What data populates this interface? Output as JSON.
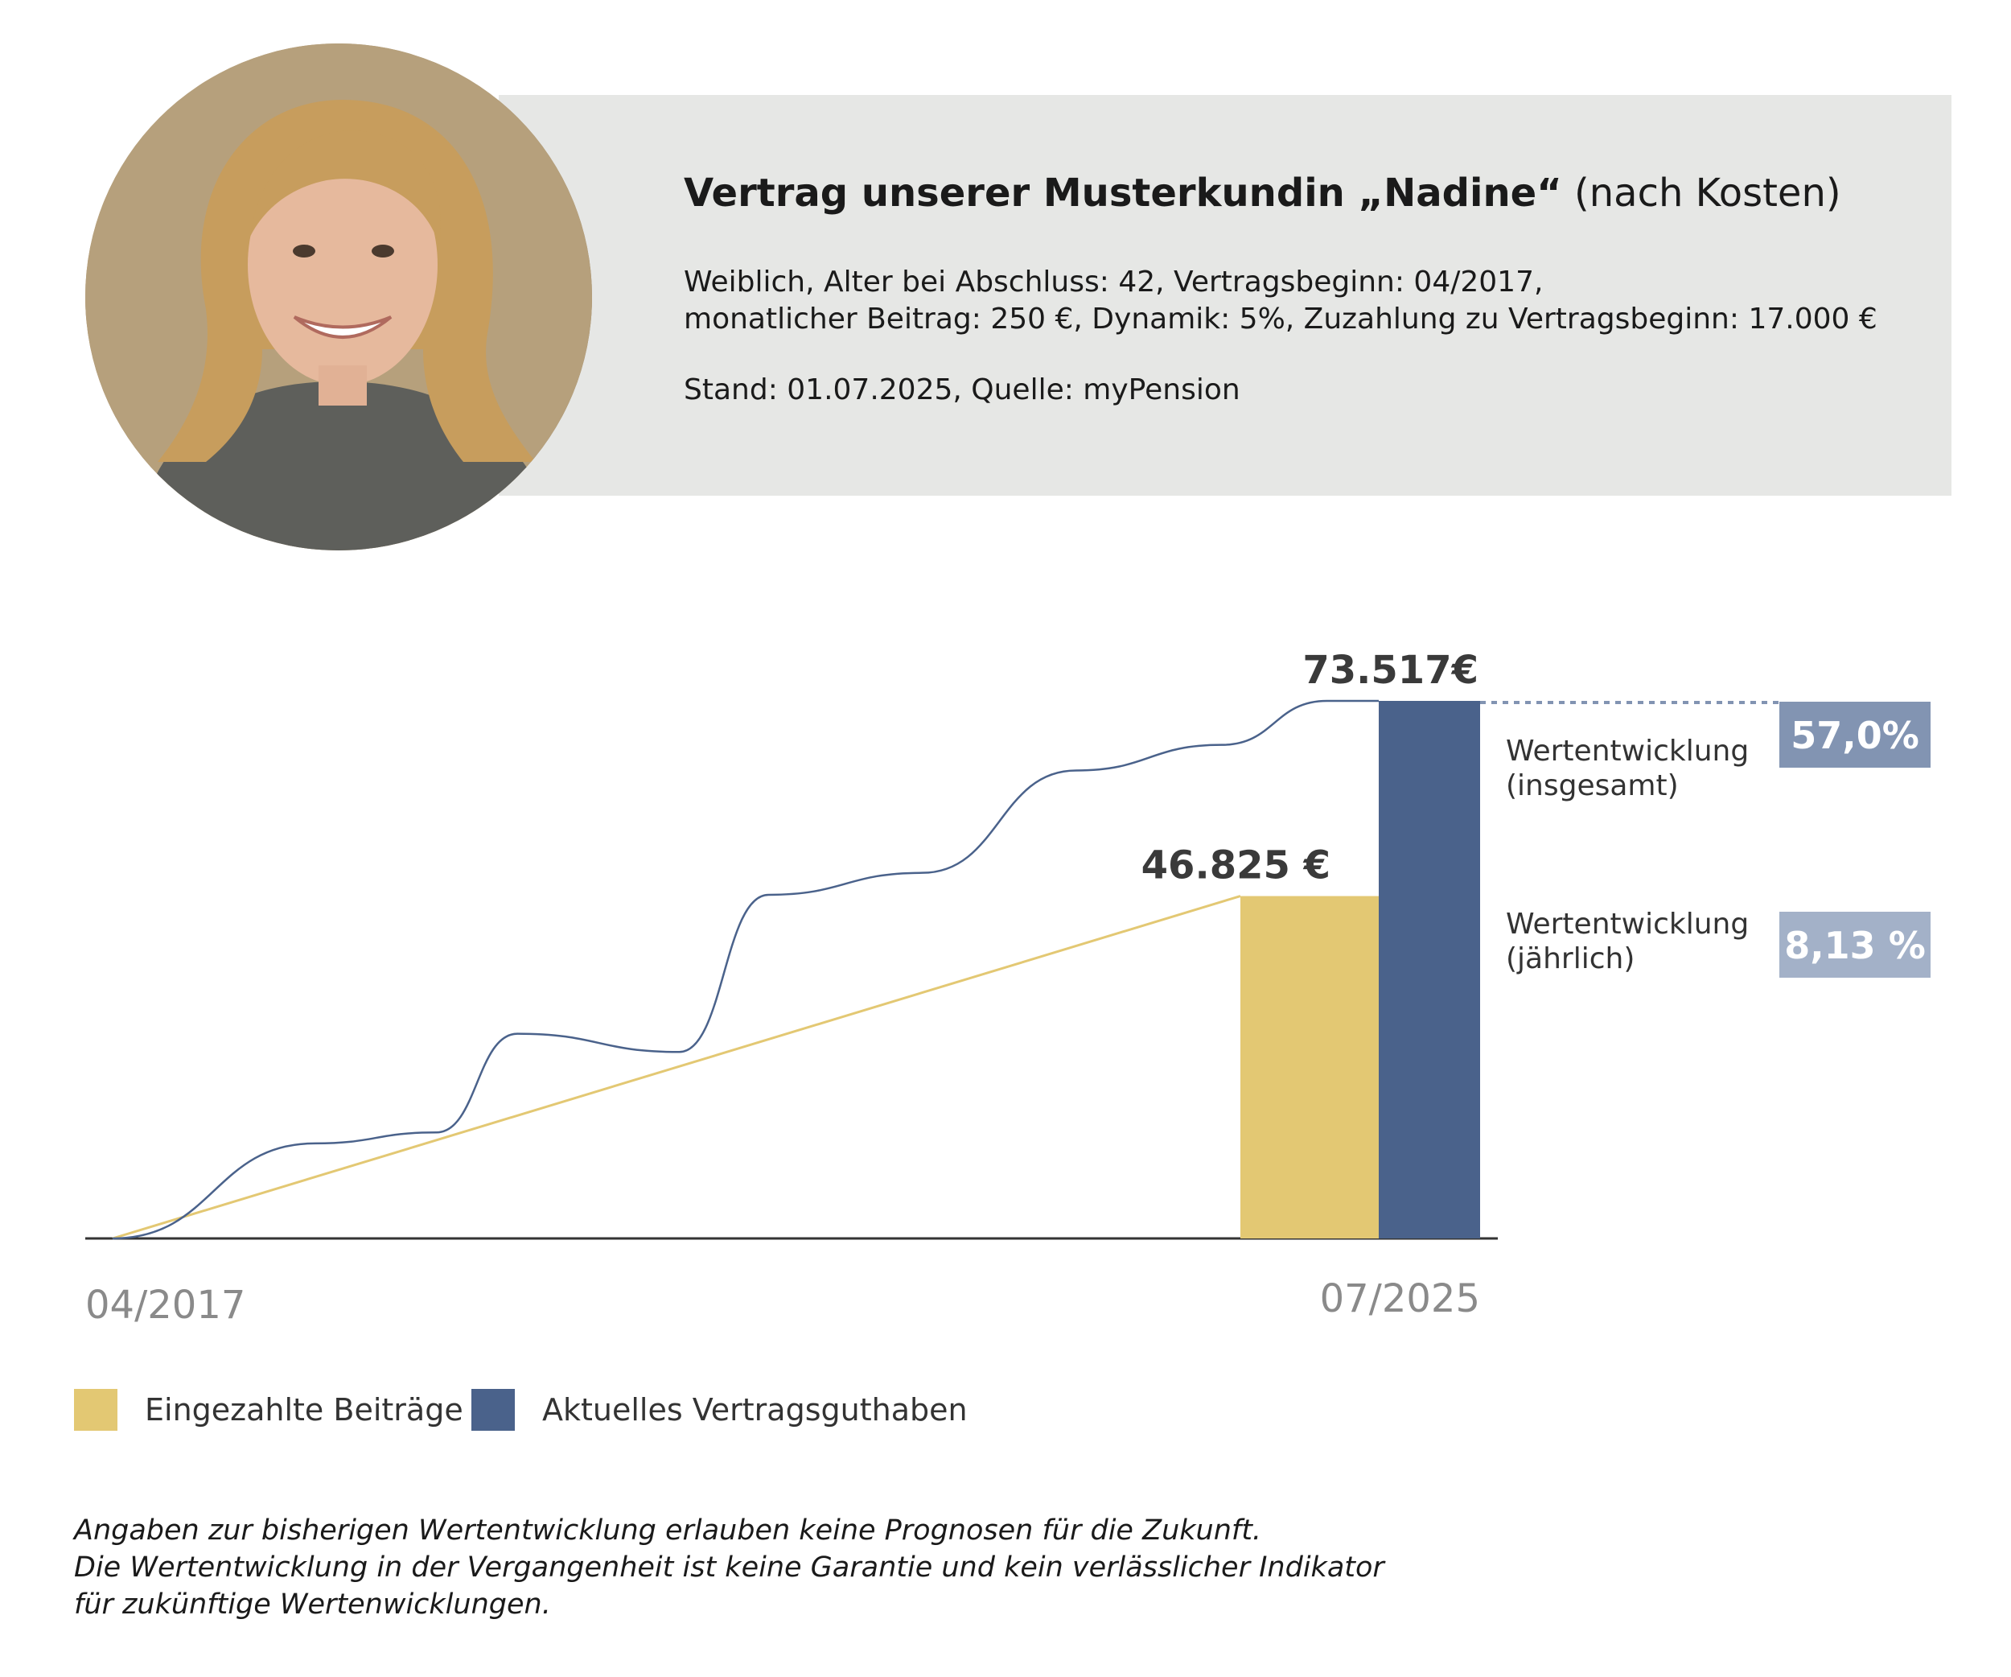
{
  "header": {
    "title_bold": "Vertrag unserer Musterkundin „Nadine“",
    "title_rest": "(nach Kosten)",
    "line1": "Weiblich, Alter bei Abschluss: 42, Vertragsbeginn: 04/2017,",
    "line2": "monatlicher Beitrag: 250 €, Dynamik: 5%, Zuzahlung zu Vertragsbeginn: 17.000 €",
    "line3": "Stand: 01.07.2025, Quelle: myPension"
  },
  "chart_data": {
    "type": "line",
    "x_start_label": "04/2017",
    "x_end_label": "07/2025",
    "series": [
      {
        "name": "Eingezahlte Beiträge",
        "color": "#e3c873",
        "x": [
          2017.25,
          2025.5
        ],
        "y": [
          0,
          46825
        ]
      },
      {
        "name": "Aktuelles Vertragsguthaben",
        "color": "#4a628b",
        "x": [
          2017.25,
          2018.5,
          2019.25,
          2019.75,
          2020.75,
          2021.3,
          2022.25,
          2023.2,
          2024.1,
          2024.75,
          2025.0
        ],
        "y": [
          0,
          13000,
          14500,
          28000,
          25500,
          47000,
          50000,
          64000,
          67500,
          73517,
          73517
        ]
      }
    ],
    "bars": [
      {
        "label": "46.825 €",
        "value": 46825,
        "color": "#e3c873"
      },
      {
        "label": "73.517€",
        "value": 73517,
        "color": "#4a628b"
      }
    ],
    "ylim": [
      0,
      73517
    ],
    "legend": [
      {
        "label": "Eingezahlte Beiträge",
        "color": "#e3c873"
      },
      {
        "label": "Aktuelles Vertragsguthaben",
        "color": "#4a628b"
      }
    ],
    "performance": [
      {
        "label_line1": "Wertentwicklung",
        "label_line2": "(insgesamt)",
        "value": "57,0%",
        "color": "#8294b2"
      },
      {
        "label_line1": "Wertentwicklung",
        "label_line2": "(jährlich)",
        "value": "8,13 %",
        "color": "#a3b1c8"
      }
    ]
  },
  "disclaimer": {
    "line1": "Angaben zur bisherigen Wertentwicklung erlauben keine Prognosen für die Zukunft.",
    "line2": "Die Wertentwicklung in der Vergangenheit ist keine Garantie und kein verlässlicher Indikator",
    "line3": "für zukünftige Wertenwicklungen."
  }
}
